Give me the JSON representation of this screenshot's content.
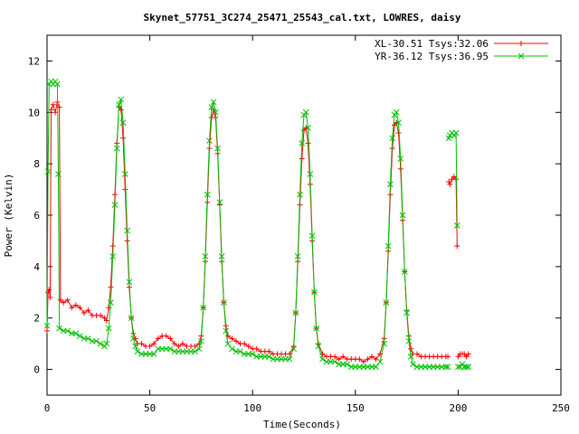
{
  "chart_data": {
    "type": "line",
    "title": "Skynet_57751_3C274_25471_25543_cal.txt, LOWRES, daisy",
    "xlabel": "Time(Seconds)",
    "ylabel": "Power (Kelvin)",
    "xlim": [
      0,
      250
    ],
    "ylim": [
      -1,
      13
    ],
    "xticks": [
      0,
      50,
      100,
      150,
      200,
      250
    ],
    "yticks": [
      0,
      2,
      4,
      6,
      8,
      10,
      12
    ],
    "grid": false,
    "legend_position": "top-right",
    "series": [
      {
        "name": "XL-30.51 Tsys:32.06",
        "color": "#ff0000",
        "marker": "plus",
        "segments": [
          [
            [
              0,
              1.5
            ],
            [
              0.5,
              3.0
            ],
            [
              1,
              3.1
            ],
            [
              1.5,
              2.8
            ],
            [
              2,
              10.1
            ],
            [
              3,
              10.3
            ],
            [
              4,
              10.0
            ],
            [
              5,
              10.4
            ],
            [
              6,
              10.2
            ],
            [
              6.5,
              2.7
            ],
            [
              8,
              2.6
            ],
            [
              10,
              2.7
            ],
            [
              12,
              2.4
            ],
            [
              14,
              2.5
            ],
            [
              16,
              2.4
            ],
            [
              18,
              2.2
            ],
            [
              20,
              2.3
            ],
            [
              22,
              2.1
            ],
            [
              24,
              2.1
            ],
            [
              26,
              2.1
            ],
            [
              28,
              2.0
            ],
            [
              29,
              1.9
            ],
            [
              30,
              2.4
            ],
            [
              31,
              3.2
            ],
            [
              32,
              4.8
            ],
            [
              33,
              6.8
            ],
            [
              34,
              8.8
            ],
            [
              35,
              10.2
            ],
            [
              36,
              10.1
            ],
            [
              37,
              9.0
            ],
            [
              38,
              7.0
            ],
            [
              39,
              5.0
            ],
            [
              40,
              3.2
            ],
            [
              41,
              2.0
            ],
            [
              42,
              1.4
            ],
            [
              43,
              1.2
            ],
            [
              44,
              1.0
            ],
            [
              46,
              1.0
            ],
            [
              48,
              0.9
            ],
            [
              50,
              0.9
            ],
            [
              52,
              1.0
            ],
            [
              54,
              1.2
            ],
            [
              56,
              1.3
            ],
            [
              58,
              1.3
            ],
            [
              60,
              1.2
            ],
            [
              62,
              1.0
            ],
            [
              64,
              0.9
            ],
            [
              66,
              1.0
            ],
            [
              68,
              0.9
            ],
            [
              70,
              0.9
            ],
            [
              72,
              0.9
            ],
            [
              74,
              1.0
            ],
            [
              75,
              1.3
            ],
            [
              76,
              2.4
            ],
            [
              77,
              4.2
            ],
            [
              78,
              6.5
            ],
            [
              79,
              8.6
            ],
            [
              80,
              9.8
            ],
            [
              81,
              10.1
            ],
            [
              82,
              9.8
            ],
            [
              83,
              8.4
            ],
            [
              84,
              6.4
            ],
            [
              85,
              4.2
            ],
            [
              86,
              2.6
            ],
            [
              87,
              1.7
            ],
            [
              88,
              1.3
            ],
            [
              90,
              1.2
            ],
            [
              92,
              1.1
            ],
            [
              94,
              1.0
            ],
            [
              96,
              1.0
            ],
            [
              98,
              0.9
            ],
            [
              100,
              0.8
            ],
            [
              102,
              0.8
            ],
            [
              104,
              0.7
            ],
            [
              106,
              0.7
            ],
            [
              108,
              0.7
            ],
            [
              110,
              0.6
            ],
            [
              112,
              0.6
            ],
            [
              114,
              0.6
            ],
            [
              116,
              0.6
            ],
            [
              118,
              0.6
            ],
            [
              120,
              0.9
            ],
            [
              121,
              2.2
            ],
            [
              122,
              4.2
            ],
            [
              123,
              6.4
            ],
            [
              124,
              8.2
            ],
            [
              125,
              9.3
            ],
            [
              126,
              9.4
            ],
            [
              127,
              8.8
            ],
            [
              128,
              7.2
            ],
            [
              129,
              5.0
            ],
            [
              130,
              3.0
            ],
            [
              131,
              1.6
            ],
            [
              132,
              1.0
            ],
            [
              134,
              0.6
            ],
            [
              136,
              0.5
            ],
            [
              138,
              0.5
            ],
            [
              140,
              0.5
            ],
            [
              142,
              0.4
            ],
            [
              144,
              0.5
            ],
            [
              146,
              0.4
            ],
            [
              148,
              0.4
            ],
            [
              150,
              0.4
            ],
            [
              152,
              0.4
            ],
            [
              154,
              0.3
            ],
            [
              156,
              0.4
            ],
            [
              158,
              0.5
            ],
            [
              160,
              0.4
            ],
            [
              162,
              0.6
            ],
            [
              164,
              1.2
            ],
            [
              165,
              2.6
            ],
            [
              166,
              4.6
            ],
            [
              167,
              6.8
            ],
            [
              168,
              8.6
            ],
            [
              169,
              9.5
            ],
            [
              170,
              9.6
            ],
            [
              171,
              9.2
            ],
            [
              172,
              7.8
            ],
            [
              173,
              5.8
            ],
            [
              174,
              3.8
            ],
            [
              175,
              2.3
            ],
            [
              176,
              1.3
            ],
            [
              177,
              0.8
            ],
            [
              178,
              0.6
            ],
            [
              180,
              0.6
            ],
            [
              182,
              0.5
            ],
            [
              184,
              0.5
            ],
            [
              186,
              0.5
            ],
            [
              188,
              0.5
            ],
            [
              190,
              0.5
            ],
            [
              192,
              0.5
            ],
            [
              194,
              0.5
            ],
            [
              195,
              0.5
            ]
          ],
          [
            [
              195.5,
              7.3
            ],
            [
              196,
              7.2
            ],
            [
              197,
              7.4
            ],
            [
              198,
              7.5
            ],
            [
              199,
              7.4
            ],
            [
              199.5,
              4.8
            ]
          ],
          [
            [
              200,
              0.5
            ],
            [
              201,
              0.6
            ],
            [
              202,
              0.6
            ],
            [
              203,
              0.6
            ],
            [
              204,
              0.5
            ],
            [
              205,
              0.6
            ]
          ]
        ]
      },
      {
        "name": "YR-36.12 Tsys:36.95",
        "color": "#00c000",
        "marker": "cross",
        "segments": [
          [
            [
              0,
              1.7
            ],
            [
              0.5,
              7.7
            ],
            [
              1,
              11.1
            ],
            [
              2,
              11.2
            ],
            [
              3,
              11.1
            ],
            [
              4,
              11.2
            ],
            [
              5,
              11.1
            ],
            [
              5.5,
              7.6
            ],
            [
              6,
              1.6
            ],
            [
              8,
              1.5
            ],
            [
              10,
              1.5
            ],
            [
              12,
              1.4
            ],
            [
              14,
              1.4
            ],
            [
              16,
              1.3
            ],
            [
              18,
              1.2
            ],
            [
              20,
              1.2
            ],
            [
              22,
              1.1
            ],
            [
              24,
              1.1
            ],
            [
              26,
              1.0
            ],
            [
              28,
              0.9
            ],
            [
              29,
              1.0
            ],
            [
              30,
              1.6
            ],
            [
              31,
              2.6
            ],
            [
              32,
              4.4
            ],
            [
              33,
              6.4
            ],
            [
              34,
              8.6
            ],
            [
              35,
              10.3
            ],
            [
              36,
              10.5
            ],
            [
              37,
              9.6
            ],
            [
              38,
              7.6
            ],
            [
              39,
              5.4
            ],
            [
              40,
              3.4
            ],
            [
              41,
              2.0
            ],
            [
              42,
              1.2
            ],
            [
              43,
              0.9
            ],
            [
              44,
              0.7
            ],
            [
              46,
              0.6
            ],
            [
              48,
              0.6
            ],
            [
              50,
              0.6
            ],
            [
              52,
              0.6
            ],
            [
              54,
              0.8
            ],
            [
              56,
              0.8
            ],
            [
              58,
              0.8
            ],
            [
              60,
              0.8
            ],
            [
              62,
              0.7
            ],
            [
              64,
              0.7
            ],
            [
              66,
              0.7
            ],
            [
              68,
              0.7
            ],
            [
              70,
              0.7
            ],
            [
              72,
              0.7
            ],
            [
              74,
              0.8
            ],
            [
              75,
              1.1
            ],
            [
              76,
              2.4
            ],
            [
              77,
              4.4
            ],
            [
              78,
              6.8
            ],
            [
              79,
              8.9
            ],
            [
              80,
              10.2
            ],
            [
              81,
              10.4
            ],
            [
              82,
              10.0
            ],
            [
              83,
              8.6
            ],
            [
              84,
              6.5
            ],
            [
              85,
              4.4
            ],
            [
              86,
              2.6
            ],
            [
              87,
              1.5
            ],
            [
              88,
              1.0
            ],
            [
              90,
              0.8
            ],
            [
              92,
              0.7
            ],
            [
              94,
              0.7
            ],
            [
              96,
              0.6
            ],
            [
              98,
              0.6
            ],
            [
              100,
              0.6
            ],
            [
              102,
              0.5
            ],
            [
              104,
              0.5
            ],
            [
              106,
              0.5
            ],
            [
              108,
              0.5
            ],
            [
              110,
              0.4
            ],
            [
              112,
              0.4
            ],
            [
              114,
              0.4
            ],
            [
              116,
              0.4
            ],
            [
              118,
              0.4
            ],
            [
              120,
              0.8
            ],
            [
              121,
              2.2
            ],
            [
              122,
              4.4
            ],
            [
              123,
              6.8
            ],
            [
              124,
              8.8
            ],
            [
              125,
              9.9
            ],
            [
              126,
              10.0
            ],
            [
              127,
              9.4
            ],
            [
              128,
              7.6
            ],
            [
              129,
              5.2
            ],
            [
              130,
              3.0
            ],
            [
              131,
              1.6
            ],
            [
              132,
              0.9
            ],
            [
              134,
              0.4
            ],
            [
              136,
              0.3
            ],
            [
              138,
              0.3
            ],
            [
              140,
              0.3
            ],
            [
              142,
              0.2
            ],
            [
              144,
              0.2
            ],
            [
              146,
              0.2
            ],
            [
              148,
              0.1
            ],
            [
              150,
              0.1
            ],
            [
              152,
              0.1
            ],
            [
              154,
              0.1
            ],
            [
              156,
              0.1
            ],
            [
              158,
              0.1
            ],
            [
              160,
              0.1
            ],
            [
              162,
              0.3
            ],
            [
              164,
              1.0
            ],
            [
              165,
              2.6
            ],
            [
              166,
              4.8
            ],
            [
              167,
              7.2
            ],
            [
              168,
              9.0
            ],
            [
              169,
              9.9
            ],
            [
              170,
              10.0
            ],
            [
              171,
              9.6
            ],
            [
              172,
              8.2
            ],
            [
              173,
              6.0
            ],
            [
              174,
              3.8
            ],
            [
              175,
              2.2
            ],
            [
              176,
              1.1
            ],
            [
              177,
              0.5
            ],
            [
              178,
              0.2
            ],
            [
              180,
              0.1
            ],
            [
              182,
              0.1
            ],
            [
              184,
              0.1
            ],
            [
              186,
              0.1
            ],
            [
              188,
              0.1
            ],
            [
              190,
              0.1
            ],
            [
              192,
              0.1
            ],
            [
              194,
              0.1
            ],
            [
              195,
              0.1
            ]
          ],
          [
            [
              195.5,
              9.0
            ],
            [
              196,
              9.1
            ],
            [
              197,
              9.2
            ],
            [
              198,
              9.1
            ],
            [
              199,
              9.2
            ],
            [
              199.5,
              5.6
            ]
          ],
          [
            [
              200,
              0.1
            ],
            [
              201,
              0.1
            ],
            [
              202,
              0.2
            ],
            [
              203,
              0.1
            ],
            [
              204,
              0.1
            ],
            [
              205,
              0.1
            ]
          ]
        ]
      }
    ]
  }
}
